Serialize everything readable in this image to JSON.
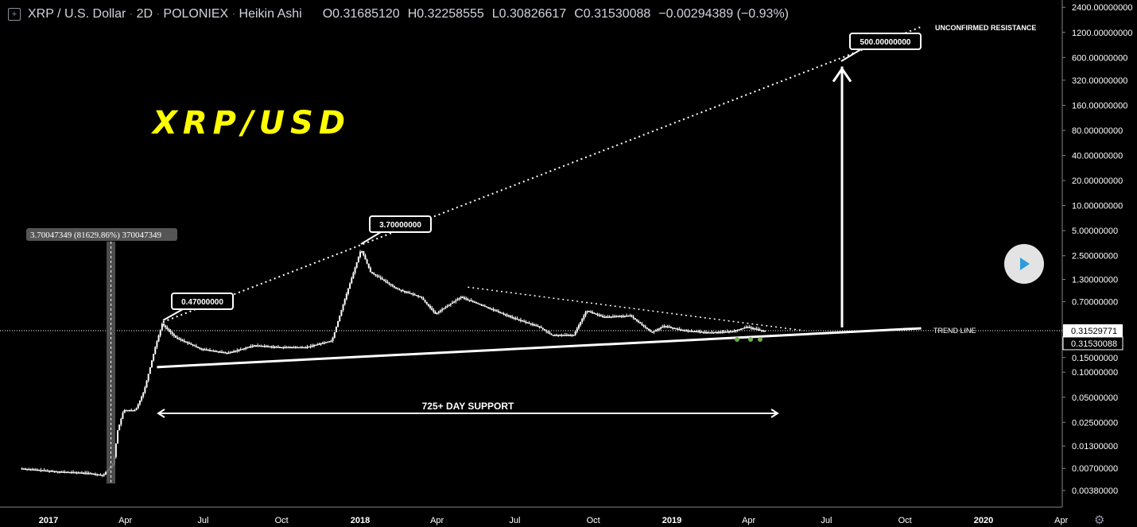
{
  "header": {
    "symbol": "XRP / U.S. Dollar",
    "interval": "2D",
    "exchange": "POLONIEX",
    "chart_style": "Heikin Ashi",
    "open": "O0.31685120",
    "high": "H0.32258555",
    "low": "L0.30826617",
    "close": "C0.31530088",
    "change": "−0.00294389 (−0.93%)"
  },
  "chart_data": {
    "type": "candlestick",
    "title": "XRP/USD",
    "yscale": "log",
    "ylim": [
      0.0032,
      2600
    ],
    "y_ticks": [
      "2400.00000000",
      "1200.00000000",
      "600.00000000",
      "320.00000000",
      "160.00000000",
      "80.00000000",
      "40.00000000",
      "20.00000000",
      "10.00000000",
      "5.00000000",
      "2.50000000",
      "1.30000000",
      "0.70000000",
      "0.15000000",
      "0.10000000",
      "0.05000000",
      "0.02500000",
      "0.01300000",
      "0.00700000",
      "0.00380000"
    ],
    "x_ticks": [
      "2017",
      "Apr",
      "Jul",
      "Oct",
      "2018",
      "Apr",
      "Jul",
      "Oct",
      "2019",
      "Apr",
      "Jul",
      "Oct",
      "2020",
      "Apr"
    ],
    "xlim": [
      "2016-12-01",
      "2020-04-25"
    ],
    "price_labels": [
      "0.31529771",
      "0.31530088"
    ],
    "series": [
      {
        "values": [
          [
            "2016-12-01",
            0.007
          ],
          [
            "2017-01-15",
            0.0064
          ],
          [
            "2017-02-15",
            0.0062
          ],
          [
            "2017-03-08",
            0.0058
          ],
          [
            "2017-03-20",
            0.008
          ],
          [
            "2017-03-25",
            0.02
          ],
          [
            "2017-04-01",
            0.035
          ],
          [
            "2017-04-15",
            0.035
          ],
          [
            "2017-04-25",
            0.06
          ],
          [
            "2017-05-08",
            0.2
          ],
          [
            "2017-05-16",
            0.38
          ],
          [
            "2017-06-01",
            0.26
          ],
          [
            "2017-07-01",
            0.19
          ],
          [
            "2017-08-01",
            0.17
          ],
          [
            "2017-09-01",
            0.21
          ],
          [
            "2017-10-01",
            0.2
          ],
          [
            "2017-11-01",
            0.2
          ],
          [
            "2017-12-01",
            0.24
          ],
          [
            "2017-12-15",
            0.7
          ],
          [
            "2018-01-04",
            3.0
          ],
          [
            "2018-01-15",
            1.6
          ],
          [
            "2018-02-15",
            1.0
          ],
          [
            "2018-03-15",
            0.8
          ],
          [
            "2018-04-01",
            0.5
          ],
          [
            "2018-05-01",
            0.8
          ],
          [
            "2018-06-01",
            0.6
          ],
          [
            "2018-07-01",
            0.45
          ],
          [
            "2018-08-01",
            0.35
          ],
          [
            "2018-08-15",
            0.28
          ],
          [
            "2018-09-10",
            0.28
          ],
          [
            "2018-09-25",
            0.55
          ],
          [
            "2018-10-15",
            0.46
          ],
          [
            "2018-11-15",
            0.48
          ],
          [
            "2018-12-10",
            0.3
          ],
          [
            "2018-12-25",
            0.36
          ],
          [
            "2019-01-15",
            0.32
          ],
          [
            "2019-02-15",
            0.3
          ],
          [
            "2019-03-15",
            0.31
          ],
          [
            "2019-04-01",
            0.35
          ],
          [
            "2019-04-20",
            0.315
          ]
        ]
      }
    ],
    "annotations": {
      "labels": [
        "0.47000000",
        "3.70000000",
        "500.00000000"
      ],
      "measure": "3.70047349 (81629.86%) 370047349",
      "support": "725+ DAY SUPPORT",
      "trend_line": "TREND LINE",
      "resistance": "UNCONFIRMED RESISTANCE"
    },
    "colors": {
      "background": "#000000",
      "candles": "#ffffff",
      "axis_text": "#ffffff",
      "title": "#ffff00",
      "accent": "#2d9cdb",
      "marker": "#6ab04c"
    }
  },
  "controls": {
    "play_icon": "play-icon",
    "settings_icon": "gear-icon"
  }
}
